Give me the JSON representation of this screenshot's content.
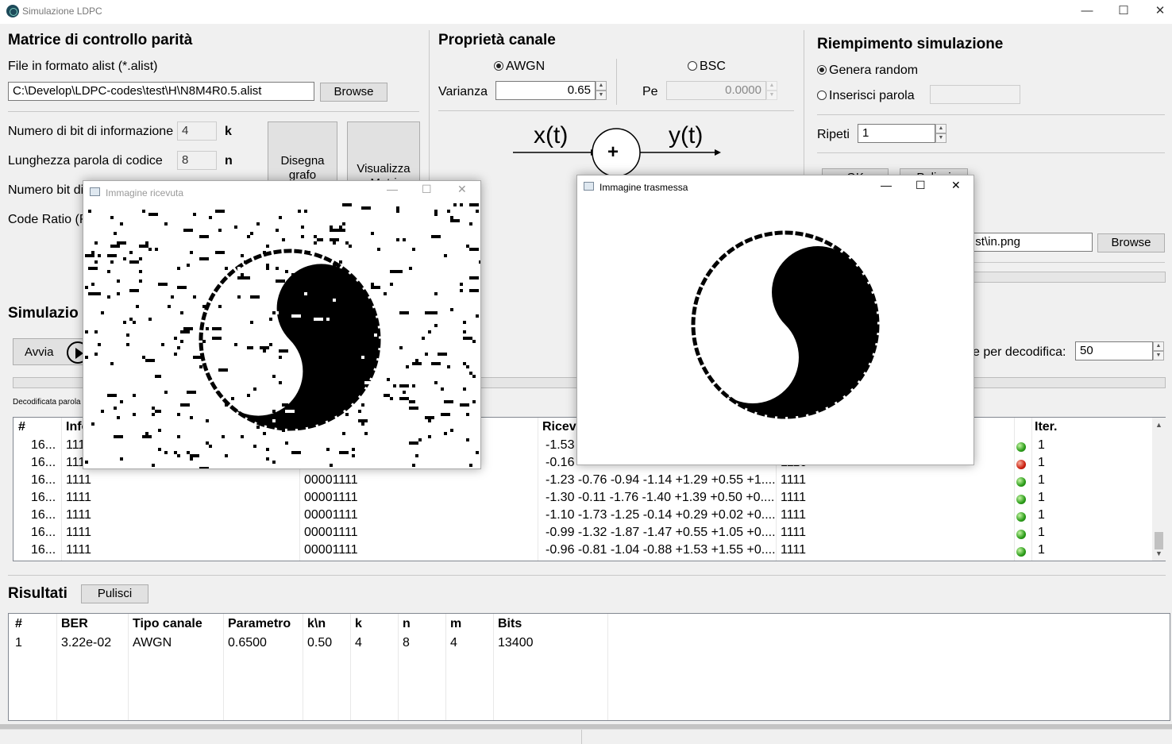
{
  "app": {
    "title": "Simulazione LDPC",
    "minimize": "—",
    "maximize": "☐",
    "close": "✕"
  },
  "matrix": {
    "title": "Matrice di controllo parità",
    "file_label": "File in formato alist (*.alist)",
    "path": "C:\\Develop\\LDPC-codes\\test\\H\\N8M4R0.5.alist",
    "browse": "Browse",
    "info_bits_label": "Numero di bit di informazione",
    "info_bits": "4",
    "k": "k",
    "code_len_label": "Lunghezza parola di codice",
    "code_len": "8",
    "n": "n",
    "parity_label": "Numero bit di",
    "code_ratio_label": "Code Ratio (R",
    "draw_graph": "Disegna grafo",
    "view_matrix": "Visualizza Matri"
  },
  "channel": {
    "title": "Proprietà canale",
    "awgn": "AWGN",
    "bsc": "BSC",
    "variance_label": "Varianza",
    "variance": "0.65",
    "pe_label": "Pe",
    "pe": "0.0000",
    "x_label": "x(t)",
    "y_label": "y(t)",
    "plus": "+"
  },
  "fill": {
    "title": "Riempimento simulazione",
    "random": "Genera random",
    "insert": "Inserisci parola",
    "repeat_label": "Ripeti",
    "repeat": "1",
    "ok": "OK",
    "clear": "Pulisci",
    "image_path": "st\\in.png",
    "browse": "Browse"
  },
  "simulation": {
    "title": "Simulazio",
    "start": "Avvia",
    "iter_label": "e per decodifica:",
    "iter": "50",
    "decoded_label": "Decodificata parola"
  },
  "table": {
    "headers": {
      "num": "#",
      "info": "Info",
      "rx": "Ricev",
      "iter": "Iter."
    },
    "rows": [
      {
        "num": "16...",
        "info": "111",
        "coded": "",
        "rx": "-1.53",
        "dec": "",
        "led": "g",
        "iter": "1"
      },
      {
        "num": "16...",
        "info": "111",
        "coded": "",
        "rx": "-0.16",
        "dec": "1110",
        "led": "r",
        "iter": "1"
      },
      {
        "num": "16...",
        "info": "1111",
        "coded": "00001111",
        "rx": "-1.23 -0.76 -0.94 -1.14 +1.29 +0.55 +1....",
        "dec": "1111",
        "led": "g",
        "iter": "1"
      },
      {
        "num": "16...",
        "info": "1111",
        "coded": "00001111",
        "rx": "-1.30 -0.11 -1.76 -1.40 +1.39 +0.50 +0....",
        "dec": "1111",
        "led": "g",
        "iter": "1"
      },
      {
        "num": "16...",
        "info": "1111",
        "coded": "00001111",
        "rx": "-1.10 -1.73 -1.25 -0.14 +0.29 +0.02 +0....",
        "dec": "1111",
        "led": "g",
        "iter": "1"
      },
      {
        "num": "16...",
        "info": "1111",
        "coded": "00001111",
        "rx": "-0.99 -1.32 -1.87 -1.47 +0.55 +1.05 +0....",
        "dec": "1111",
        "led": "g",
        "iter": "1"
      },
      {
        "num": "16...",
        "info": "1111",
        "coded": "00001111",
        "rx": "-0.96 -0.81 -1.04 -0.88 +1.53 +1.55 +0....",
        "dec": "1111",
        "led": "g",
        "iter": "1"
      }
    ]
  },
  "results": {
    "title": "Risultati",
    "clear": "Pulisci",
    "headers": [
      "#",
      "BER",
      "Tipo canale",
      "Parametro",
      "k\\n",
      "k",
      "n",
      "m",
      "Bits"
    ],
    "rows": [
      [
        "1",
        "3.22e-02",
        "AWGN",
        "0.6500",
        "0.50",
        "4",
        "8",
        "4",
        "13400"
      ]
    ]
  },
  "received_window": {
    "title": "Immagine ricevuta"
  },
  "transmitted_window": {
    "title": "Immagine trasmessa"
  }
}
